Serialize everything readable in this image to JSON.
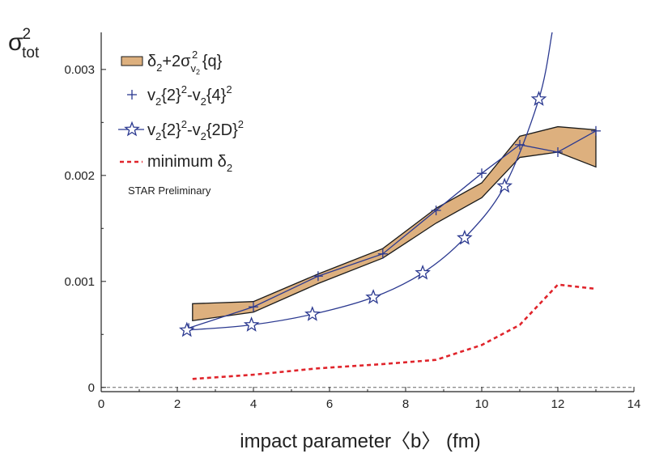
{
  "chart_data": {
    "type": "line",
    "title": "",
    "xlabel": "impact parameter〈b〉 (fm)",
    "ylabel": "σ",
    "ylabel_sup": "2",
    "ylabel_sub": "tot",
    "xlim": [
      0,
      14
    ],
    "ylim": [
      -4e-05,
      0.00335
    ],
    "x_ticks": [
      0,
      2,
      4,
      6,
      8,
      10,
      12,
      14
    ],
    "x_tick_labels": [
      "0",
      "2",
      "4",
      "6",
      "8",
      "10",
      "12",
      "14"
    ],
    "y_ticks": [
      0,
      0.001,
      0.002,
      0.003
    ],
    "y_tick_labels": [
      "0",
      "0.001",
      "0.002",
      "0.003"
    ],
    "legend_position": "top-left",
    "annotation": "STAR Preliminary",
    "colors": {
      "band_fill": "#ddb07e",
      "band_edge": "#1a1a1a",
      "series_blue": "#2b3990",
      "minimum_red": "#e0242b",
      "zero_line": "#666666"
    },
    "series": [
      {
        "name": "δ₂+2σ² {q}",
        "legend_main": "δ",
        "legend_sub1": "2",
        "legend_mid": "+2σ",
        "legend_sub2": "v",
        "legend_subsub": "2",
        "legend_sup": "2",
        "legend_tail": " {q}",
        "style": "band",
        "x": [
          2.4,
          4.0,
          5.7,
          7.4,
          8.8,
          10.0,
          11.0,
          12.0,
          13.0
        ],
        "y_upper": [
          0.00063,
          0.00068,
          0.00107,
          0.00131,
          0.00169,
          0.00193,
          0.00237,
          0.00246,
          0.00243
        ],
        "y_lower": [
          0.00063,
          0.00071,
          0.00098,
          0.00122,
          0.00155,
          0.00179,
          0.00217,
          0.00222,
          0.00208
        ],
        "y_left_top": 0.00079,
        "y_left_bottom": 0.00063,
        "y_start_top": 0.00079,
        "y_second_top": 0.00081
      },
      {
        "name": "v₂{2}²-v₂{4}²",
        "legend_parts": [
          "v",
          "2",
          "{2}",
          "2",
          "-v",
          "2",
          "{4}",
          "2"
        ],
        "style": "plus-line",
        "x": [
          2.3,
          4.0,
          5.7,
          7.4,
          8.8,
          10.0,
          11.0,
          12.0,
          13.0
        ],
        "y": [
          0.00056,
          0.00076,
          0.00105,
          0.00126,
          0.00167,
          0.00202,
          0.00229,
          0.00222,
          0.00242
        ]
      },
      {
        "name": "v₂{2}²-v₂{2D}²",
        "legend_parts": [
          "v",
          "2",
          "{2}",
          "2",
          "-v",
          "2",
          "{2D}",
          "2"
        ],
        "style": "star-curve",
        "x": [
          2.25,
          3.95,
          5.55,
          7.15,
          8.45,
          9.55,
          10.6,
          11.5
        ],
        "y": [
          0.00054,
          0.00059,
          0.00069,
          0.00085,
          0.00108,
          0.00141,
          0.0019,
          0.00272
        ],
        "curve_x": [
          2.25,
          3.95,
          5.55,
          7.15,
          8.45,
          9.55,
          10.6,
          11.5,
          11.85
        ],
        "curve_y": [
          0.00054,
          0.00059,
          0.00069,
          0.00085,
          0.00108,
          0.00141,
          0.0019,
          0.00272,
          0.00335
        ]
      },
      {
        "name": "minimum δ₂",
        "legend_main": "minimum δ",
        "legend_sub": "2",
        "style": "dashed",
        "x": [
          2.4,
          4.0,
          5.7,
          7.4,
          8.8,
          10.0,
          11.0,
          12.0,
          13.0
        ],
        "y": [
          8e-05,
          0.00012,
          0.00018,
          0.00022,
          0.00026,
          0.0004,
          0.00059,
          0.00097,
          0.00093
        ]
      }
    ]
  }
}
